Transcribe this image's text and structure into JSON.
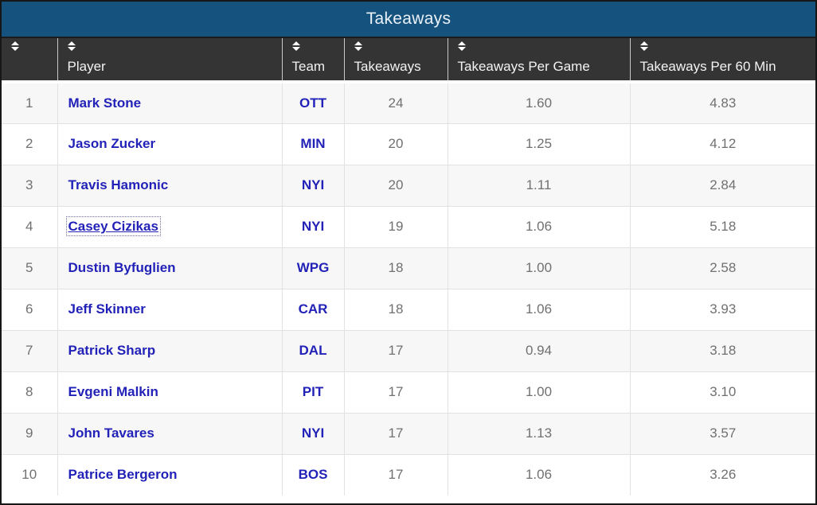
{
  "title": "Takeaways",
  "colors": {
    "title_bar": "#15527E",
    "header_bg": "#343434",
    "link_blue": "#2222B8",
    "alt_row": "#F7F7F7",
    "value_gray": "#707070"
  },
  "table": {
    "columns": [
      {
        "id": "rank",
        "label": ""
      },
      {
        "id": "player",
        "label": "Player"
      },
      {
        "id": "team",
        "label": "Team"
      },
      {
        "id": "takeaways",
        "label": "Takeaways"
      },
      {
        "id": "per_game",
        "label": "Takeaways Per Game"
      },
      {
        "id": "per_60",
        "label": "Takeaways Per 60 Min"
      }
    ],
    "rows": [
      {
        "rank": "1",
        "player": "Mark Stone",
        "team": "OTT",
        "takeaways": "24",
        "per_game": "1.60",
        "per_60": "4.83"
      },
      {
        "rank": "2",
        "player": "Jason Zucker",
        "team": "MIN",
        "takeaways": "20",
        "per_game": "1.25",
        "per_60": "4.12"
      },
      {
        "rank": "3",
        "player": "Travis Hamonic",
        "team": "NYI",
        "takeaways": "20",
        "per_game": "1.11",
        "per_60": "2.84"
      },
      {
        "rank": "4",
        "player": "Casey Cizikas",
        "team": "NYI",
        "takeaways": "19",
        "per_game": "1.06",
        "per_60": "5.18"
      },
      {
        "rank": "5",
        "player": "Dustin Byfuglien",
        "team": "WPG",
        "takeaways": "18",
        "per_game": "1.00",
        "per_60": "2.58"
      },
      {
        "rank": "6",
        "player": "Jeff Skinner",
        "team": "CAR",
        "takeaways": "18",
        "per_game": "1.06",
        "per_60": "3.93"
      },
      {
        "rank": "7",
        "player": "Patrick Sharp",
        "team": "DAL",
        "takeaways": "17",
        "per_game": "0.94",
        "per_60": "3.18"
      },
      {
        "rank": "8",
        "player": "Evgeni Malkin",
        "team": "PIT",
        "takeaways": "17",
        "per_game": "1.00",
        "per_60": "3.10"
      },
      {
        "rank": "9",
        "player": "John Tavares",
        "team": "NYI",
        "takeaways": "17",
        "per_game": "1.13",
        "per_60": "3.57"
      },
      {
        "rank": "10",
        "player": "Patrice Bergeron",
        "team": "BOS",
        "takeaways": "17",
        "per_game": "1.06",
        "per_60": "3.26"
      }
    ],
    "focused_player": "Casey Cizikas"
  }
}
